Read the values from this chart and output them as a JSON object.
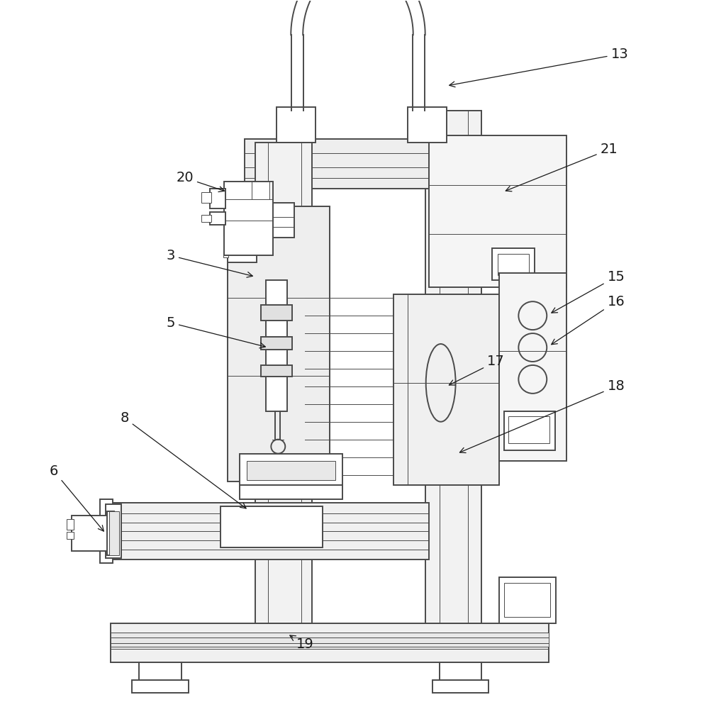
{
  "background_color": "#ffffff",
  "line_color": "#4a4a4a",
  "label_color": "#1a1a1a",
  "figsize": [
    10.0,
    9.97
  ],
  "dpi": 100,
  "font_size": 14,
  "lw_main": 1.4,
  "lw_thin": 0.7
}
